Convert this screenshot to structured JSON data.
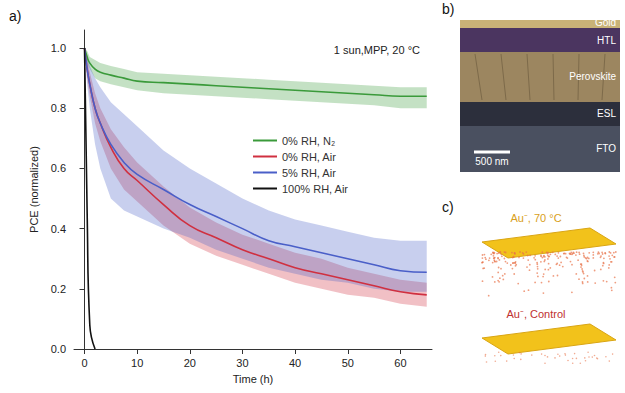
{
  "chart_data": {
    "type": "line",
    "title": "a)",
    "x_label": "Time (h)",
    "y_label": "PCE (normalized)",
    "annotations": [
      "1 sun,MPP, 20 °C"
    ],
    "x": [
      0,
      0.5,
      1,
      2,
      3,
      5,
      7.5,
      10,
      15,
      20,
      25,
      30,
      35,
      40,
      45,
      50,
      55,
      60,
      65
    ],
    "series": [
      {
        "name": "0% RH, N₂",
        "color": "#3a9a3a",
        "values": [
          1.0,
          0.97,
          0.95,
          0.93,
          0.92,
          0.91,
          0.9,
          0.89,
          0.885,
          0.88,
          0.875,
          0.87,
          0.865,
          0.86,
          0.855,
          0.85,
          0.845,
          0.84,
          0.84
        ],
        "lower": [
          1.0,
          0.95,
          0.93,
          0.9,
          0.89,
          0.88,
          0.87,
          0.86,
          0.85,
          0.845,
          0.84,
          0.835,
          0.83,
          0.825,
          0.82,
          0.815,
          0.81,
          0.8,
          0.8
        ],
        "upper": [
          1.0,
          0.99,
          0.97,
          0.96,
          0.95,
          0.94,
          0.93,
          0.92,
          0.915,
          0.91,
          0.905,
          0.9,
          0.895,
          0.89,
          0.885,
          0.88,
          0.875,
          0.87,
          0.87
        ]
      },
      {
        "name": "0% RH, Air",
        "color": "#d03040",
        "values": [
          1.0,
          0.93,
          0.88,
          0.8,
          0.75,
          0.67,
          0.6,
          0.56,
          0.48,
          0.41,
          0.37,
          0.33,
          0.3,
          0.27,
          0.25,
          0.23,
          0.21,
          0.19,
          0.18
        ],
        "lower": [
          1.0,
          0.9,
          0.84,
          0.75,
          0.69,
          0.6,
          0.53,
          0.49,
          0.41,
          0.35,
          0.31,
          0.28,
          0.25,
          0.22,
          0.2,
          0.18,
          0.17,
          0.15,
          0.14
        ],
        "upper": [
          1.0,
          0.96,
          0.92,
          0.85,
          0.8,
          0.73,
          0.67,
          0.62,
          0.54,
          0.47,
          0.42,
          0.38,
          0.35,
          0.32,
          0.3,
          0.27,
          0.25,
          0.23,
          0.22
        ]
      },
      {
        "name": "5% RH, Air",
        "color": "#4a5fc8",
        "values": [
          1.0,
          0.93,
          0.88,
          0.8,
          0.75,
          0.68,
          0.62,
          0.58,
          0.53,
          0.48,
          0.44,
          0.4,
          0.36,
          0.34,
          0.32,
          0.3,
          0.28,
          0.26,
          0.255
        ],
        "lower": [
          1.0,
          0.88,
          0.8,
          0.68,
          0.6,
          0.5,
          0.46,
          0.44,
          0.4,
          0.37,
          0.33,
          0.3,
          0.27,
          0.25,
          0.23,
          0.22,
          0.2,
          0.19,
          0.19
        ],
        "upper": [
          1.0,
          0.97,
          0.94,
          0.9,
          0.87,
          0.82,
          0.78,
          0.74,
          0.66,
          0.6,
          0.55,
          0.5,
          0.46,
          0.43,
          0.41,
          0.39,
          0.37,
          0.36,
          0.36
        ]
      },
      {
        "name": "100% RH, Air",
        "color": "#111111",
        "values": [
          1.0,
          0.45,
          0.08,
          0.0,
          null,
          null,
          null,
          null,
          null,
          null,
          null,
          null,
          null,
          null,
          null,
          null,
          null,
          null,
          null
        ]
      }
    ],
    "xlim": [
      -2,
      66
    ],
    "xticks": [
      0,
      10,
      20,
      30,
      40,
      50,
      60
    ],
    "ylim": [
      0,
      1.06
    ],
    "yticks": [
      {
        "value": 0,
        "label": "0.0"
      },
      {
        "value": 0.2,
        "label": "0.2"
      },
      {
        "value": 0.4,
        "label": "0.4"
      },
      {
        "value": 0.6,
        "label": "0.6"
      },
      {
        "value": 0.8,
        "label": "0.8"
      },
      {
        "value": 1,
        "label": "1.0"
      }
    ],
    "grid": false,
    "legend": "top"
  },
  "panels": [
    {
      "label": "b)",
      "layers": [
        "Gold",
        "HTL",
        "Perovskite",
        "ESL",
        "FTO"
      ],
      "scale_bar": "500 nm"
    },
    {
      "label": "c)",
      "captions": [
        "Au⁻, 70 °C",
        "Au⁻, Control"
      ]
    }
  ]
}
